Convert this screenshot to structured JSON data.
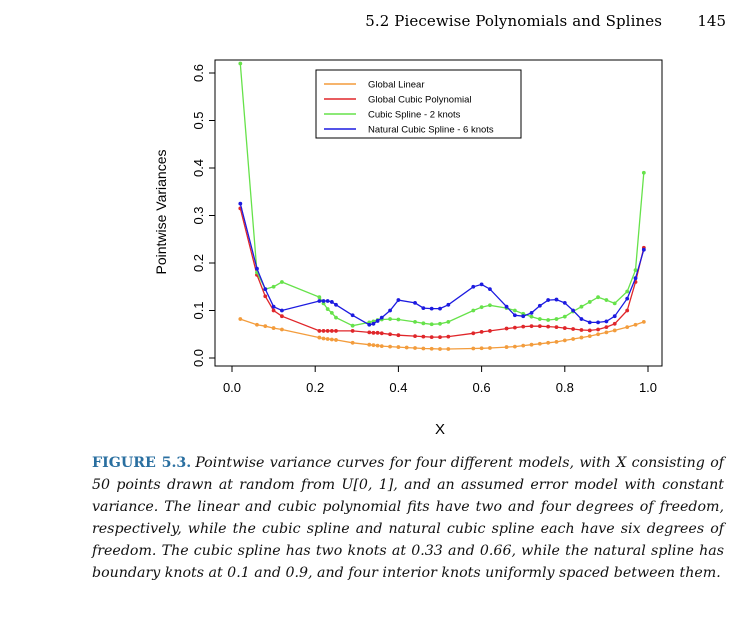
{
  "header": {
    "running_title": "5.2 Piecewise Polynomials and Splines",
    "page_number": "145"
  },
  "caption": {
    "label": "FIGURE 5.3.",
    "text": "Pointwise variance curves for four different models, with X consisting of 50 points drawn at random from U[0, 1], and an assumed error model with constant variance. The linear and cubic polynomial fits have two and four degrees of freedom, respectively, while the cubic spline and natural cubic spline each have six degrees of freedom. The cubic spline has two knots at 0.33 and 0.66, while the natural spline has boundary knots at 0.1 and 0.9, and four interior knots uniformly spaced between them."
  },
  "chart_data": {
    "type": "line",
    "title": "",
    "xlabel": "X",
    "ylabel": "Pointwise Variances",
    "xlim": [
      0.0,
      1.0
    ],
    "ylim": [
      0.0,
      0.6
    ],
    "xticks": [
      "0.0",
      "0.2",
      "0.4",
      "0.6",
      "0.8",
      "1.0"
    ],
    "yticks": [
      "0.0",
      "0.1",
      "0.2",
      "0.3",
      "0.4",
      "0.5",
      "0.6"
    ],
    "grid": false,
    "legend_position": "top-center",
    "series": [
      {
        "name": "Global Linear",
        "color": "#f39c3c",
        "x": [
          0.02,
          0.06,
          0.08,
          0.1,
          0.12,
          0.21,
          0.22,
          0.23,
          0.24,
          0.25,
          0.29,
          0.33,
          0.34,
          0.35,
          0.36,
          0.38,
          0.4,
          0.42,
          0.44,
          0.46,
          0.48,
          0.5,
          0.52,
          0.58,
          0.6,
          0.62,
          0.66,
          0.68,
          0.7,
          0.72,
          0.74,
          0.76,
          0.78,
          0.8,
          0.82,
          0.84,
          0.86,
          0.88,
          0.9,
          0.92,
          0.95,
          0.97,
          0.99
        ],
        "y": [
          0.082,
          0.07,
          0.067,
          0.063,
          0.06,
          0.043,
          0.041,
          0.04,
          0.039,
          0.038,
          0.032,
          0.028,
          0.027,
          0.026,
          0.025,
          0.024,
          0.023,
          0.022,
          0.021,
          0.02,
          0.0195,
          0.019,
          0.019,
          0.02,
          0.0205,
          0.021,
          0.023,
          0.024,
          0.026,
          0.028,
          0.03,
          0.032,
          0.034,
          0.037,
          0.04,
          0.043,
          0.046,
          0.05,
          0.054,
          0.058,
          0.065,
          0.07,
          0.076
        ]
      },
      {
        "name": "Global Cubic Polynomial",
        "color": "#e0262a",
        "x": [
          0.02,
          0.06,
          0.08,
          0.1,
          0.12,
          0.21,
          0.22,
          0.23,
          0.24,
          0.25,
          0.29,
          0.33,
          0.34,
          0.35,
          0.36,
          0.38,
          0.4,
          0.44,
          0.46,
          0.48,
          0.5,
          0.52,
          0.58,
          0.6,
          0.62,
          0.66,
          0.68,
          0.7,
          0.72,
          0.74,
          0.76,
          0.78,
          0.8,
          0.82,
          0.84,
          0.86,
          0.88,
          0.9,
          0.92,
          0.95,
          0.97,
          0.99
        ],
        "y": [
          0.315,
          0.175,
          0.13,
          0.1,
          0.088,
          0.057,
          0.057,
          0.057,
          0.057,
          0.057,
          0.057,
          0.054,
          0.053,
          0.053,
          0.052,
          0.05,
          0.048,
          0.046,
          0.045,
          0.044,
          0.044,
          0.045,
          0.052,
          0.055,
          0.057,
          0.062,
          0.064,
          0.066,
          0.067,
          0.067,
          0.066,
          0.065,
          0.063,
          0.061,
          0.059,
          0.058,
          0.06,
          0.065,
          0.072,
          0.1,
          0.16,
          0.232
        ]
      },
      {
        "name": "Cubic Spline - 2 knots",
        "color": "#66e24a",
        "x": [
          0.02,
          0.06,
          0.08,
          0.1,
          0.12,
          0.21,
          0.22,
          0.23,
          0.24,
          0.25,
          0.29,
          0.33,
          0.34,
          0.35,
          0.36,
          0.38,
          0.4,
          0.44,
          0.46,
          0.48,
          0.5,
          0.52,
          0.58,
          0.6,
          0.62,
          0.66,
          0.68,
          0.7,
          0.72,
          0.74,
          0.76,
          0.78,
          0.8,
          0.82,
          0.84,
          0.86,
          0.88,
          0.9,
          0.92,
          0.95,
          0.97,
          0.99
        ],
        "y": [
          0.62,
          0.18,
          0.145,
          0.15,
          0.16,
          0.128,
          0.115,
          0.103,
          0.095,
          0.085,
          0.068,
          0.075,
          0.077,
          0.08,
          0.081,
          0.082,
          0.081,
          0.076,
          0.073,
          0.071,
          0.072,
          0.076,
          0.1,
          0.107,
          0.111,
          0.105,
          0.1,
          0.093,
          0.087,
          0.082,
          0.08,
          0.082,
          0.087,
          0.098,
          0.108,
          0.118,
          0.128,
          0.122,
          0.115,
          0.14,
          0.185,
          0.39
        ]
      },
      {
        "name": "Natural Cubic Spline - 6 knots",
        "color": "#1c1ae0",
        "x": [
          0.02,
          0.06,
          0.08,
          0.1,
          0.12,
          0.21,
          0.22,
          0.23,
          0.24,
          0.25,
          0.29,
          0.33,
          0.34,
          0.35,
          0.36,
          0.38,
          0.4,
          0.44,
          0.46,
          0.48,
          0.5,
          0.52,
          0.58,
          0.6,
          0.62,
          0.66,
          0.68,
          0.7,
          0.72,
          0.74,
          0.76,
          0.78,
          0.8,
          0.82,
          0.84,
          0.86,
          0.88,
          0.9,
          0.92,
          0.95,
          0.97,
          0.99
        ],
        "y": [
          0.325,
          0.188,
          0.145,
          0.108,
          0.1,
          0.12,
          0.12,
          0.12,
          0.118,
          0.112,
          0.09,
          0.07,
          0.072,
          0.078,
          0.085,
          0.1,
          0.122,
          0.116,
          0.105,
          0.104,
          0.104,
          0.112,
          0.15,
          0.155,
          0.145,
          0.108,
          0.09,
          0.088,
          0.095,
          0.11,
          0.122,
          0.123,
          0.116,
          0.1,
          0.082,
          0.075,
          0.075,
          0.077,
          0.088,
          0.125,
          0.168,
          0.228
        ]
      }
    ]
  }
}
